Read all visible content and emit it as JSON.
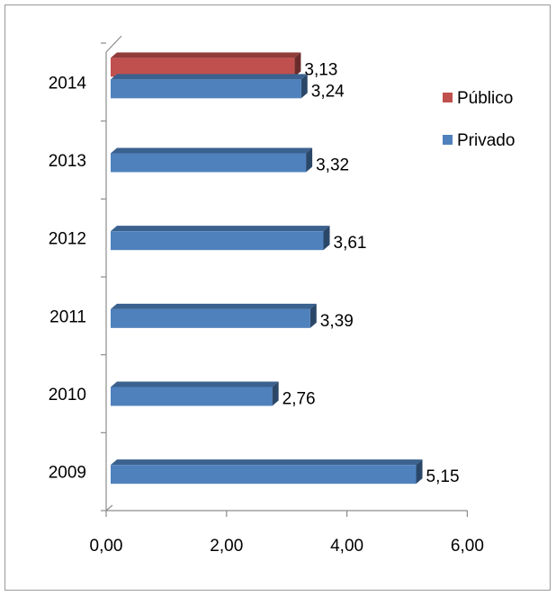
{
  "chart_data": {
    "type": "bar",
    "orientation": "horizontal",
    "style": "3d",
    "categories": [
      "2009",
      "2010",
      "2011",
      "2012",
      "2013",
      "2014"
    ],
    "series": [
      {
        "name": "Público",
        "color": "#C0504D",
        "values": [
          null,
          null,
          null,
          null,
          null,
          3.13
        ]
      },
      {
        "name": "Privado",
        "color": "#4F81BD",
        "values": [
          5.15,
          2.76,
          3.39,
          3.61,
          3.32,
          3.24
        ]
      }
    ],
    "data_labels": {
      "Público": [
        null,
        null,
        null,
        null,
        null,
        "3,13"
      ],
      "Privado": [
        "5,15",
        "2,76",
        "3,39",
        "3,61",
        "3,32",
        "3,24"
      ]
    },
    "x_ticks": [
      "0,00",
      "2,00",
      "4,00",
      "6,00"
    ],
    "xlim": [
      0,
      6
    ],
    "title": "",
    "xlabel": "",
    "ylabel": "",
    "legend_position": "right",
    "grid": false
  }
}
